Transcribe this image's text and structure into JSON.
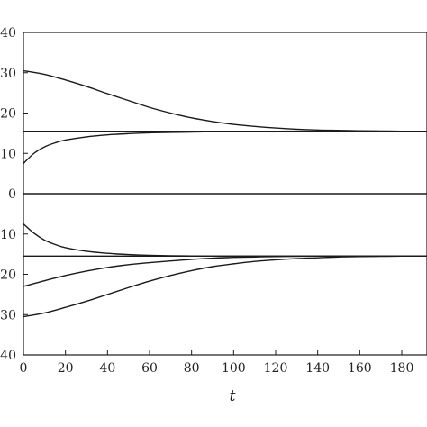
{
  "chart_data": {
    "type": "line",
    "xlabel": "t",
    "ylabel": "",
    "title": "",
    "xlim": [
      0,
      192
    ],
    "ylim": [
      -40,
      40
    ],
    "grid": false,
    "legend": "none",
    "x_ticks": [
      0,
      20,
      40,
      60,
      80,
      100,
      120,
      140,
      160,
      180
    ],
    "x_tick_labels": [
      "0",
      "20",
      "40",
      "60",
      "80",
      "100",
      "120",
      "140",
      "160",
      "180"
    ],
    "y_ticks": [
      40,
      30,
      20,
      10,
      0,
      -10,
      -20,
      -30,
      -40
    ],
    "y_tick_labels": [
      "40",
      "30",
      "20",
      "10",
      "0",
      "10",
      "20",
      "30",
      "40"
    ],
    "series": [
      {
        "x": [
          0,
          20,
          40,
          60,
          80,
          100,
          120,
          140,
          160,
          180,
          192
        ],
        "y": [
          15.5,
          15.5,
          15.5,
          15.5,
          15.5,
          15.5,
          15.5,
          15.5,
          15.5,
          15.5,
          15.5
        ]
      },
      {
        "x": [
          0,
          20,
          40,
          60,
          80,
          100,
          120,
          140,
          160,
          180,
          192
        ],
        "y": [
          0,
          0,
          0,
          0,
          0,
          0,
          0,
          0,
          0,
          0,
          0
        ]
      },
      {
        "x": [
          0,
          20,
          40,
          60,
          80,
          100,
          120,
          140,
          160,
          180,
          192
        ],
        "y": [
          -15.5,
          -15.5,
          -15.5,
          -15.5,
          -15.5,
          -15.5,
          -15.5,
          -15.5,
          -15.5,
          -15.5,
          -15.5
        ]
      },
      {
        "x": [
          0,
          10,
          20,
          30,
          40,
          50,
          60,
          70,
          80,
          90,
          100,
          110,
          120,
          130,
          140,
          150,
          160,
          170,
          180,
          192
        ],
        "y": [
          30.5,
          29.6,
          28.2,
          26.6,
          24.8,
          23.1,
          21.4,
          20.0,
          18.8,
          17.9,
          17.2,
          16.7,
          16.3,
          16.0,
          15.8,
          15.7,
          15.6,
          15.55,
          15.5,
          15.5
        ]
      },
      {
        "x": [
          0,
          5,
          10,
          15,
          20,
          30,
          40,
          50,
          60,
          70,
          80,
          90,
          100,
          120,
          140,
          160,
          180,
          192
        ],
        "y": [
          7.5,
          10.0,
          11.6,
          12.6,
          13.3,
          14.1,
          14.6,
          14.9,
          15.1,
          15.2,
          15.3,
          15.4,
          15.45,
          15.5,
          15.5,
          15.5,
          15.5,
          15.5
        ]
      },
      {
        "x": [
          0,
          5,
          10,
          15,
          20,
          30,
          40,
          50,
          60,
          70,
          80,
          90,
          100,
          120,
          140,
          160,
          180,
          192
        ],
        "y": [
          -7.5,
          -9.8,
          -11.5,
          -12.6,
          -13.4,
          -14.3,
          -14.8,
          -15.1,
          -15.3,
          -15.4,
          -15.45,
          -15.5,
          -15.5,
          -15.5,
          -15.5,
          -15.5,
          -15.5,
          -15.5
        ]
      },
      {
        "x": [
          0,
          10,
          20,
          30,
          40,
          50,
          60,
          70,
          80,
          90,
          100,
          110,
          120,
          140,
          160,
          180,
          192
        ],
        "y": [
          -23.0,
          -21.6,
          -20.3,
          -19.2,
          -18.3,
          -17.6,
          -17.1,
          -16.7,
          -16.3,
          -16.0,
          -15.8,
          -15.7,
          -15.6,
          -15.5,
          -15.5,
          -15.5,
          -15.5
        ]
      },
      {
        "x": [
          0,
          10,
          20,
          30,
          40,
          50,
          60,
          70,
          80,
          90,
          100,
          110,
          120,
          130,
          140,
          150,
          160,
          170,
          180,
          192
        ],
        "y": [
          -30.5,
          -29.6,
          -28.2,
          -26.7,
          -25.0,
          -23.3,
          -21.7,
          -20.3,
          -19.1,
          -18.1,
          -17.4,
          -16.8,
          -16.4,
          -16.1,
          -15.9,
          -15.7,
          -15.6,
          -15.55,
          -15.5,
          -15.5
        ]
      }
    ]
  }
}
